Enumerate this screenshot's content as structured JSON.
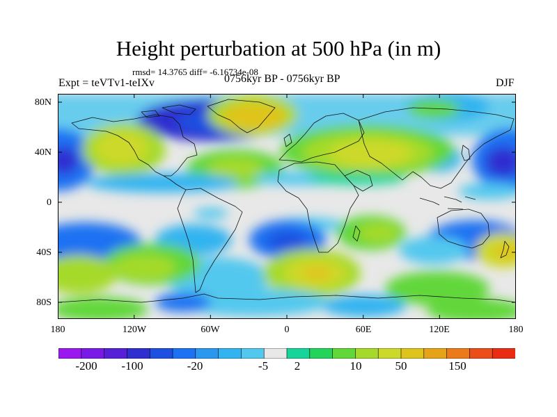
{
  "header": {
    "title": "Height perturbation at 500 hPa (in m)",
    "stats": "rmsd= 14.3765 diff= -6.16734e-08",
    "periods": "0756kyr BP - 0756kyr BP",
    "experiment": "Expt = teVTv1-teIXv",
    "season": "DJF"
  },
  "axes": {
    "y_ticks": [
      "80N",
      "40N",
      "0",
      "40S",
      "80S"
    ],
    "x_ticks": [
      "180",
      "120W",
      "60W",
      "0",
      "60E",
      "120E",
      "180"
    ]
  },
  "colorbar": {
    "labels": [
      "-200",
      "-100",
      "-20",
      "-5",
      "2",
      "10",
      "50",
      "150"
    ],
    "colors": [
      "#9a19ee",
      "#7a1ae6",
      "#5520d6",
      "#2f2fd0",
      "#1f4fe0",
      "#1c72f2",
      "#2b98f0",
      "#33b4f0",
      "#52c8ee",
      "#e8e8e8",
      "#16d49a",
      "#24d45a",
      "#62d73a",
      "#a5da2c",
      "#cdd92a",
      "#e0c41e",
      "#e6a219",
      "#ea7a1a",
      "#ec4e18",
      "#ea2c12"
    ]
  },
  "colors": {
    "land_outline": "#111111",
    "background_field": "#e8e8e8",
    "map_border": "#000000"
  }
}
